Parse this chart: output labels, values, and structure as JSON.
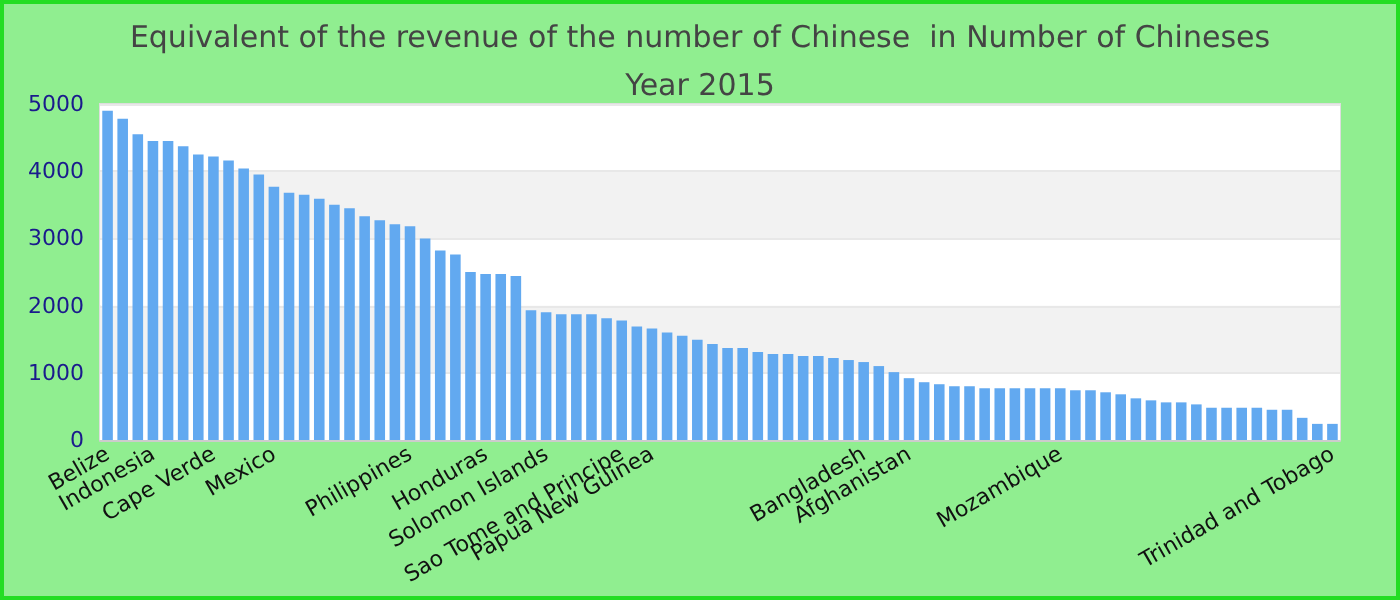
{
  "chart_data": {
    "type": "bar",
    "title": "Equivalent of the revenue of the number of Chinese  in Number of Chineses",
    "subtitle": "Year 2015",
    "categories": [
      "Belize",
      null,
      null,
      "Indonesia",
      null,
      null,
      null,
      "Cape Verde",
      null,
      null,
      null,
      "Mexico",
      null,
      null,
      null,
      null,
      null,
      null,
      null,
      null,
      "Philippines",
      null,
      null,
      null,
      null,
      "Honduras",
      null,
      null,
      null,
      "Solomon Islands",
      null,
      null,
      null,
      null,
      "Sao Tome and Principe",
      null,
      "Papua New Guinea",
      null,
      null,
      null,
      null,
      null,
      null,
      null,
      null,
      null,
      null,
      null,
      null,
      null,
      "Bangladesh",
      null,
      null,
      "Afghanistan",
      null,
      null,
      null,
      null,
      null,
      null,
      null,
      null,
      null,
      "Mozambique",
      null,
      null,
      null,
      null,
      null,
      null,
      null,
      null,
      null,
      null,
      null,
      null,
      null,
      null,
      null,
      null,
      null,
      "Trinidad and Tobago"
    ],
    "values": [
      4900,
      4780,
      4550,
      4450,
      4450,
      4370,
      4250,
      4220,
      4160,
      4040,
      3950,
      3770,
      3680,
      3650,
      3590,
      3500,
      3450,
      3330,
      3270,
      3210,
      3180,
      3000,
      2820,
      2760,
      2500,
      2470,
      2470,
      2440,
      1930,
      1900,
      1870,
      1870,
      1870,
      1810,
      1780,
      1690,
      1660,
      1600,
      1550,
      1490,
      1430,
      1370,
      1370,
      1310,
      1280,
      1280,
      1250,
      1250,
      1220,
      1190,
      1160,
      1100,
      1010,
      920,
      860,
      830,
      800,
      800,
      770,
      770,
      770,
      770,
      770,
      770,
      740,
      740,
      710,
      680,
      620,
      590,
      560,
      560,
      530,
      480,
      480,
      480,
      480,
      450,
      450,
      330,
      240,
      240
    ],
    "color": "#62a9f0",
    "ylim": [
      0,
      5000
    ],
    "yticks": [
      0,
      1000,
      2000,
      3000,
      4000,
      5000
    ],
    "grid": "y"
  }
}
